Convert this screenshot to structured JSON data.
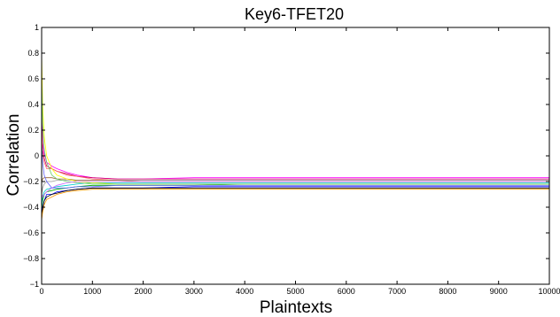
{
  "chart_data": {
    "type": "line",
    "title": "Key6-TFET20",
    "xlabel": "Plaintexts",
    "ylabel": "Correlation",
    "xlim": [
      0,
      10000
    ],
    "ylim": [
      -1,
      1
    ],
    "xticks": [
      0,
      1000,
      2000,
      3000,
      4000,
      5000,
      6000,
      7000,
      8000,
      9000,
      10000
    ],
    "yticks": [
      1,
      0.8,
      0.6,
      0.4,
      0.2,
      0,
      -0.2,
      -0.4,
      -0.6,
      -0.8,
      -1
    ],
    "ytick_labels": [
      "1",
      "0.8",
      "0.6",
      "0.4",
      "0.2",
      "0",
      "−0.2",
      "−0.4",
      "−0.6",
      "−0.8",
      "−1"
    ],
    "grid": false,
    "x": [
      0,
      20,
      50,
      100,
      200,
      300,
      500,
      700,
      1000,
      1500,
      2000,
      3000,
      4000,
      5000,
      6000,
      7000,
      8000,
      9000,
      10000
    ],
    "series": [
      {
        "color": "#ff00ff",
        "values": [
          0.35,
          0.1,
          0.02,
          -0.05,
          -0.08,
          -0.1,
          -0.13,
          -0.15,
          -0.17,
          -0.18,
          -0.18,
          -0.17,
          -0.17,
          -0.17,
          -0.17,
          -0.17,
          -0.17,
          -0.17,
          -0.17
        ]
      },
      {
        "color": "#cc0066",
        "values": [
          0.3,
          0.05,
          -0.02,
          -0.08,
          -0.1,
          -0.12,
          -0.14,
          -0.16,
          -0.17,
          -0.18,
          -0.18,
          -0.18,
          -0.18,
          -0.18,
          -0.18,
          -0.18,
          -0.18,
          -0.18,
          -0.18
        ]
      },
      {
        "color": "#ff6666",
        "values": [
          0.2,
          0.02,
          -0.05,
          -0.1,
          -0.1,
          -0.12,
          -0.15,
          -0.16,
          -0.18,
          -0.19,
          -0.19,
          -0.19,
          -0.19,
          -0.19,
          -0.19,
          -0.19,
          -0.19,
          -0.19,
          -0.19
        ]
      },
      {
        "color": "#0000ff",
        "values": [
          -0.45,
          -0.4,
          -0.35,
          -0.3,
          -0.3,
          -0.28,
          -0.27,
          -0.26,
          -0.25,
          -0.25,
          -0.25,
          -0.24,
          -0.24,
          -0.24,
          -0.24,
          -0.24,
          -0.24,
          -0.24,
          -0.24
        ]
      },
      {
        "color": "#000000",
        "values": [
          -0.48,
          -0.42,
          -0.35,
          -0.32,
          -0.3,
          -0.29,
          -0.27,
          -0.26,
          -0.25,
          -0.25,
          -0.25,
          -0.25,
          -0.25,
          -0.25,
          -0.25,
          -0.25,
          -0.25,
          -0.25,
          -0.25
        ]
      },
      {
        "color": "#00aa00",
        "values": [
          -0.42,
          -0.35,
          -0.3,
          -0.28,
          -0.27,
          -0.26,
          -0.25,
          -0.24,
          -0.23,
          -0.23,
          -0.23,
          -0.23,
          -0.22,
          -0.22,
          -0.22,
          -0.22,
          -0.22,
          -0.22,
          -0.22
        ]
      },
      {
        "color": "#00cccc",
        "values": [
          -0.4,
          -0.32,
          -0.28,
          -0.26,
          -0.25,
          -0.24,
          -0.23,
          -0.22,
          -0.21,
          -0.21,
          -0.21,
          -0.21,
          -0.21,
          -0.21,
          -0.21,
          -0.21,
          -0.21,
          -0.21,
          -0.21
        ]
      },
      {
        "color": "#ff9900",
        "values": [
          -0.5,
          -0.44,
          -0.38,
          -0.34,
          -0.32,
          -0.3,
          -0.28,
          -0.27,
          -0.26,
          -0.26,
          -0.26,
          -0.26,
          -0.26,
          -0.26,
          -0.26,
          -0.26,
          -0.26,
          -0.26,
          -0.26
        ]
      },
      {
        "color": "#999999",
        "values": [
          -0.3,
          -0.25,
          -0.22,
          -0.2,
          -0.2,
          -0.19,
          -0.19,
          -0.19,
          -0.19,
          -0.19,
          -0.19,
          -0.19,
          -0.19,
          -0.19,
          -0.19,
          -0.19,
          -0.19,
          -0.19,
          -0.19
        ]
      },
      {
        "color": "#996633",
        "values": [
          -0.2,
          -0.18,
          -0.17,
          -0.17,
          -0.17,
          -0.18,
          -0.18,
          -0.19,
          -0.19,
          -0.19,
          -0.2,
          -0.2,
          -0.2,
          -0.2,
          -0.2,
          -0.2,
          -0.2,
          -0.2,
          -0.2
        ]
      },
      {
        "color": "#ffff00",
        "values": [
          0.8,
          0.4,
          0.15,
          0.0,
          -0.1,
          -0.15,
          -0.18,
          -0.2,
          -0.21,
          -0.22,
          -0.22,
          -0.22,
          -0.22,
          -0.22,
          -0.22,
          -0.22,
          -0.22,
          -0.22,
          -0.22
        ]
      },
      {
        "color": "#66cc66",
        "values": [
          0.6,
          0.25,
          0.05,
          -0.05,
          -0.15,
          -0.18,
          -0.2,
          -0.21,
          -0.22,
          -0.22,
          -0.22,
          -0.22,
          -0.22,
          -0.22,
          -0.22,
          -0.22,
          -0.22,
          -0.22,
          -0.22
        ]
      },
      {
        "color": "#6666ff",
        "values": [
          0.1,
          -0.05,
          -0.15,
          -0.2,
          -0.25,
          -0.25,
          -0.25,
          -0.24,
          -0.24,
          -0.23,
          -0.23,
          -0.23,
          -0.23,
          -0.23,
          -0.23,
          -0.23,
          -0.23,
          -0.23,
          -0.23
        ]
      },
      {
        "color": "#cc66ff",
        "values": [
          -0.3,
          -0.32,
          -0.3,
          -0.28,
          -0.25,
          -0.23,
          -0.21,
          -0.2,
          -0.2,
          -0.2,
          -0.2,
          -0.2,
          -0.2,
          -0.2,
          -0.2,
          -0.2,
          -0.2,
          -0.2,
          -0.2
        ]
      }
    ]
  }
}
